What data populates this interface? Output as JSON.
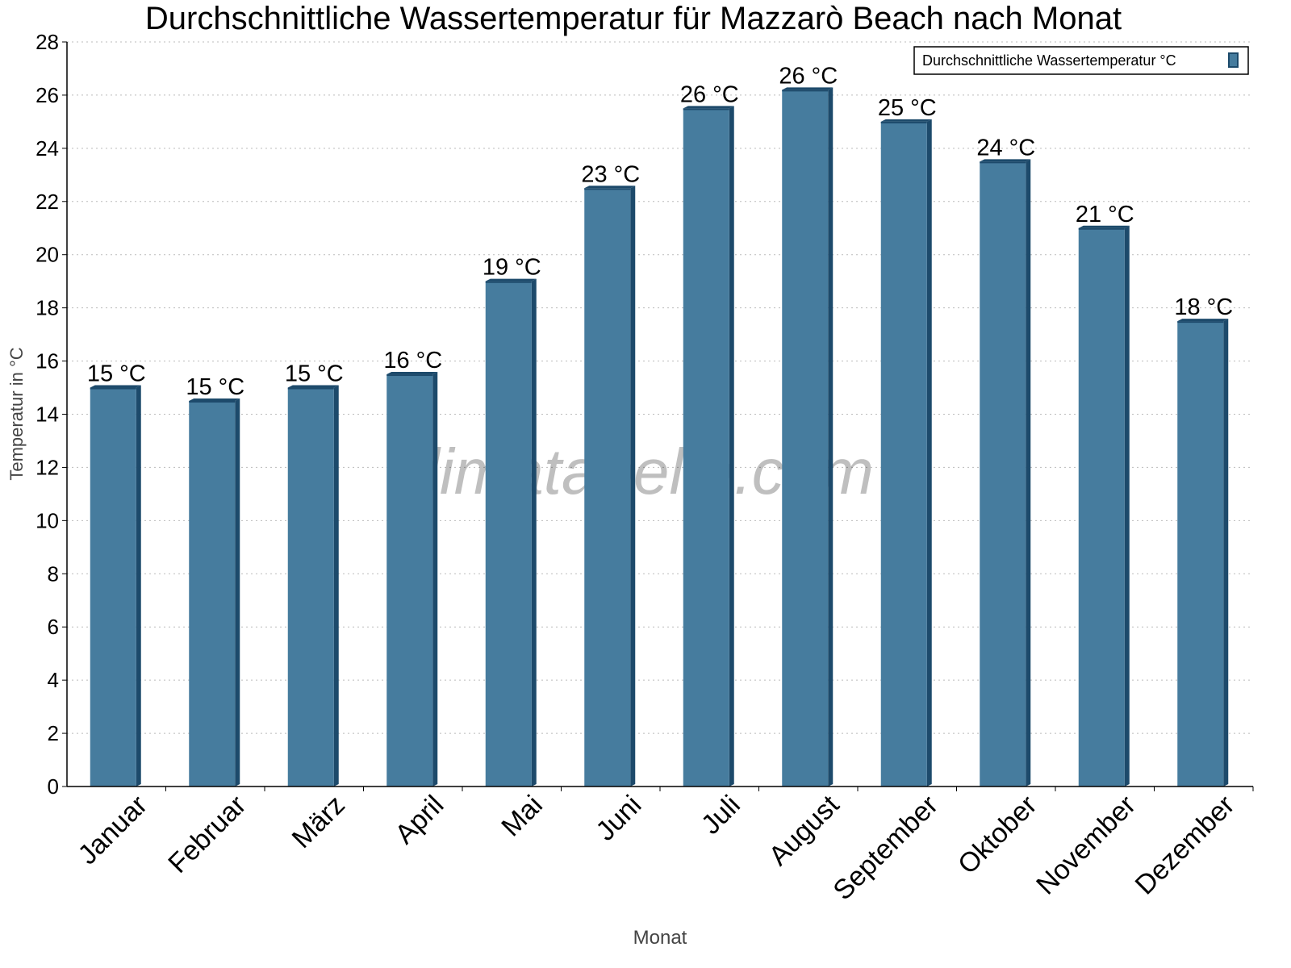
{
  "chart_data": {
    "type": "bar",
    "title": "Durchschnittliche Wassertemperatur für Mazzarò Beach nach Monat",
    "xlabel": "Monat",
    "ylabel": "Temperatur in °C",
    "ylim": [
      0,
      28
    ],
    "yticks": [
      0,
      2,
      4,
      6,
      8,
      10,
      12,
      14,
      16,
      18,
      20,
      22,
      24,
      26,
      28
    ],
    "grid": true,
    "legend_position": "top-right",
    "categories": [
      "Januar",
      "Februar",
      "März",
      "April",
      "Mai",
      "Juni",
      "Juli",
      "August",
      "September",
      "Oktober",
      "November",
      "Dezember"
    ],
    "series": [
      {
        "name": "Durchschnittliche Wassertemperatur °C",
        "color": "#467c9e",
        "values": [
          15,
          14.5,
          15,
          15.5,
          19,
          22.5,
          25.5,
          26.2,
          25,
          23.5,
          21,
          17.5
        ],
        "data_labels": [
          "15 °C",
          "15 °C",
          "15 °C",
          "16 °C",
          "19 °C",
          "23 °C",
          "26 °C",
          "26 °C",
          "25 °C",
          "24 °C",
          "21 °C",
          "18 °C"
        ]
      }
    ],
    "watermark": "klimatabelle.com"
  }
}
